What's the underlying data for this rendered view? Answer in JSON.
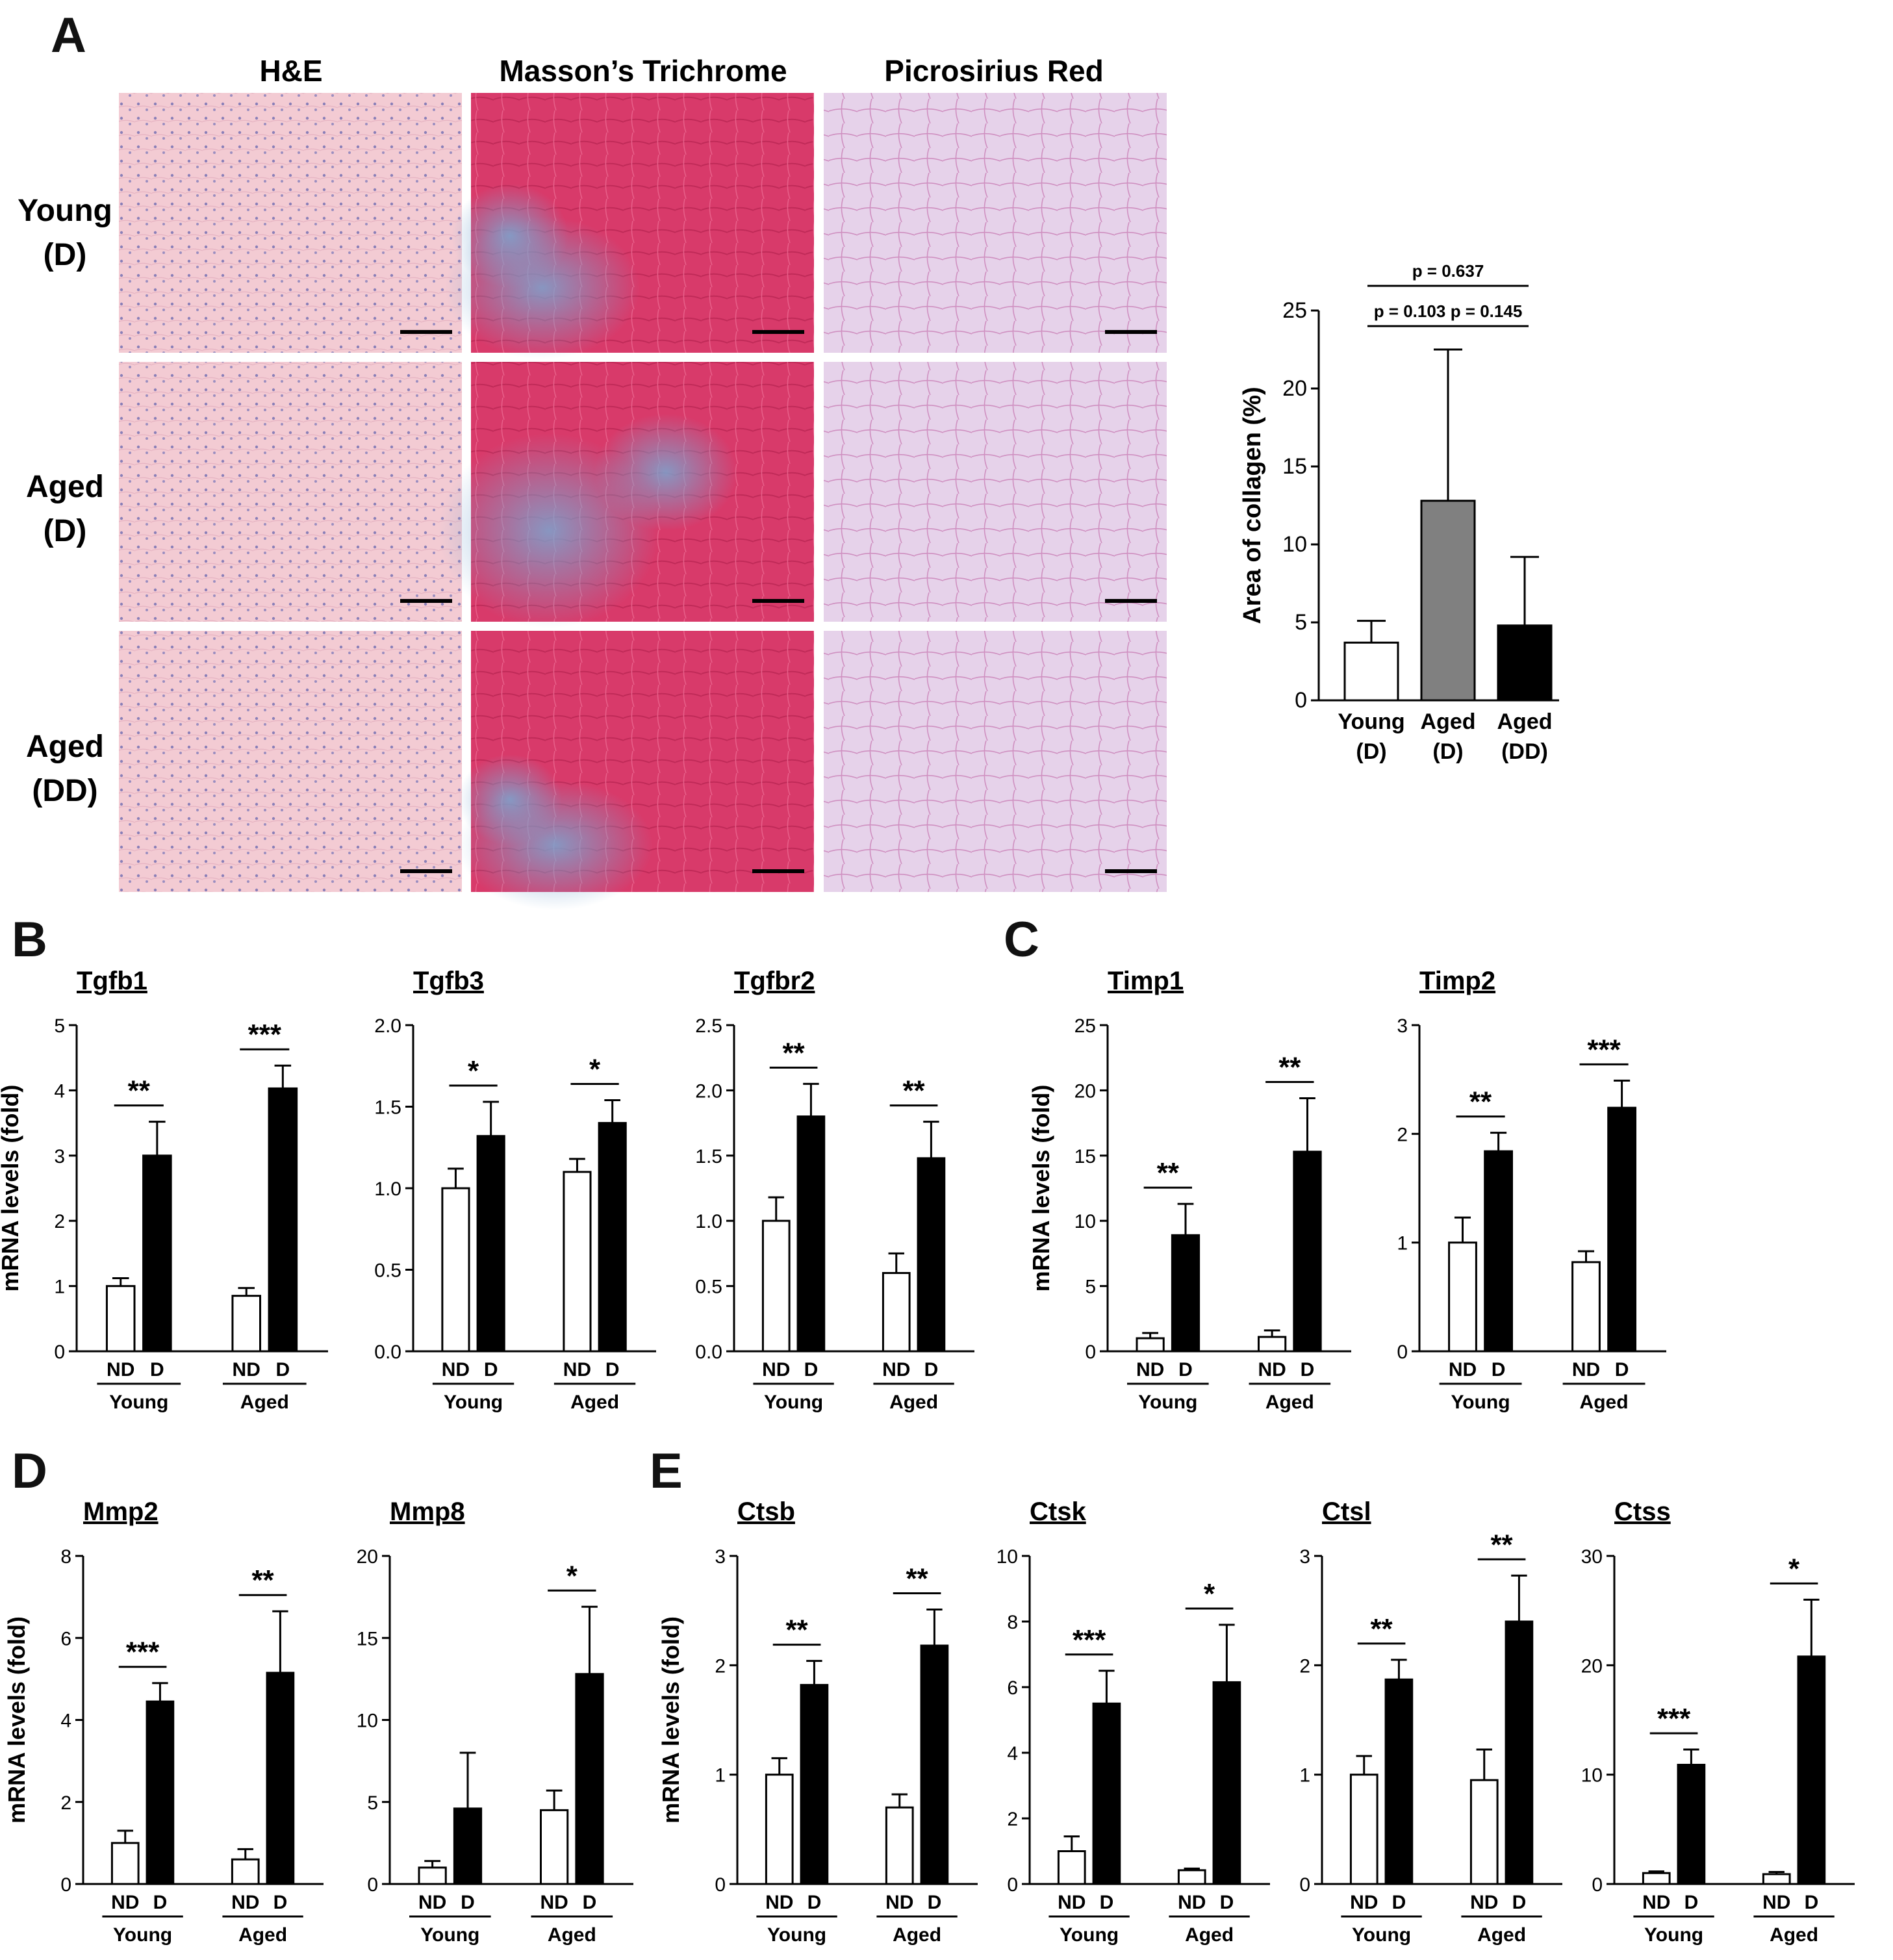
{
  "panels": {
    "A": "A",
    "B": "B",
    "C": "C",
    "D": "D",
    "E": "E"
  },
  "stain_headers": [
    "H&E",
    "Masson’s Trichrome",
    "Picrosirius Red"
  ],
  "row_labels": [
    [
      "Young",
      "(D)"
    ],
    [
      "Aged",
      "(D)"
    ],
    [
      "Aged",
      "(DD)"
    ]
  ],
  "group_names": [
    "Young",
    "Aged"
  ],
  "bar_labels": [
    "ND",
    "D"
  ],
  "colors": {
    "he_bg": "#f3cbd3",
    "he_cell": "#8a7fb8",
    "mt_bg": "#d83a6a",
    "mt_blue": "#7aa6d0",
    "psr_bg": "#e6d2ea",
    "psr_line": "#c86aa8",
    "gray_bar": "#808080",
    "black": "#000000",
    "white": "#ffffff"
  },
  "chart_data": [
    {
      "id": "collagen",
      "type": "bar",
      "categories": [
        [
          "Young",
          "(D)"
        ],
        [
          "Aged",
          "(D)"
        ],
        [
          "Aged",
          "(DD)"
        ]
      ],
      "values": [
        3.7,
        12.8,
        4.8
      ],
      "errors": [
        1.4,
        9.7,
        4.4
      ],
      "fills": [
        "#ffffff",
        "#808080",
        "#000000"
      ],
      "ylabel": "Area of collagen (%)",
      "ylim": [
        0,
        25
      ],
      "yticks": [
        "0",
        "5",
        "10",
        "15",
        "20",
        "25"
      ],
      "pvalues": [
        "p = 0.637",
        "p = 0.103",
        "p = 0.145"
      ]
    },
    {
      "id": "tgfb1",
      "type": "bar",
      "title": "Tgfb1",
      "ylabel": "mRNA levels (fold)",
      "ylim": [
        0,
        5
      ],
      "yticks": [
        "0",
        "1",
        "2",
        "3",
        "4",
        "5"
      ],
      "series": [
        {
          "name": "ND",
          "values": [
            1.0,
            0.85
          ],
          "errors": [
            0.12,
            0.12
          ]
        },
        {
          "name": "D",
          "values": [
            3.0,
            4.03
          ],
          "errors": [
            0.52,
            0.35
          ]
        }
      ],
      "sig": [
        "**",
        "***"
      ]
    },
    {
      "id": "tgfb3",
      "type": "bar",
      "title": "Tgfb3",
      "ylabel": "",
      "ylim": [
        0,
        2.0
      ],
      "yticks": [
        "0.0",
        "0.5",
        "1.0",
        "1.5",
        "2.0"
      ],
      "series": [
        {
          "name": "ND",
          "values": [
            1.0,
            1.1
          ],
          "errors": [
            0.12,
            0.08
          ]
        },
        {
          "name": "D",
          "values": [
            1.32,
            1.4
          ],
          "errors": [
            0.21,
            0.14
          ]
        }
      ],
      "sig": [
        "*",
        "*"
      ]
    },
    {
      "id": "tgfbr2",
      "type": "bar",
      "title": "Tgfbr2",
      "ylabel": "",
      "ylim": [
        0,
        2.5
      ],
      "yticks": [
        "0.0",
        "0.5",
        "1.0",
        "1.5",
        "2.0",
        "2.5"
      ],
      "series": [
        {
          "name": "ND",
          "values": [
            1.0,
            0.6
          ],
          "errors": [
            0.18,
            0.15
          ]
        },
        {
          "name": "D",
          "values": [
            1.8,
            1.48
          ],
          "errors": [
            0.25,
            0.28
          ]
        }
      ],
      "sig": [
        "**",
        "**"
      ]
    },
    {
      "id": "timp1",
      "type": "bar",
      "title": "Timp1",
      "ylabel": "mRNA levels (fold)",
      "ylim": [
        0,
        25
      ],
      "yticks": [
        "0",
        "5",
        "10",
        "15",
        "20",
        "25"
      ],
      "series": [
        {
          "name": "ND",
          "values": [
            1.0,
            1.1
          ],
          "errors": [
            0.4,
            0.5
          ]
        },
        {
          "name": "D",
          "values": [
            8.9,
            15.3
          ],
          "errors": [
            2.4,
            4.1
          ]
        }
      ],
      "sig": [
        "**",
        "**"
      ]
    },
    {
      "id": "timp2",
      "type": "bar",
      "title": "Timp2",
      "ylabel": "",
      "ylim": [
        0,
        3
      ],
      "yticks": [
        "0",
        "1",
        "2",
        "3"
      ],
      "series": [
        {
          "name": "ND",
          "values": [
            1.0,
            0.82
          ],
          "errors": [
            0.23,
            0.1
          ]
        },
        {
          "name": "D",
          "values": [
            1.84,
            2.24
          ],
          "errors": [
            0.17,
            0.25
          ]
        }
      ],
      "sig": [
        "**",
        "***"
      ]
    },
    {
      "id": "mmp2",
      "type": "bar",
      "title": "Mmp2",
      "ylabel": "mRNA levels (fold)",
      "ylim": [
        0,
        8
      ],
      "yticks": [
        "0",
        "2",
        "4",
        "6",
        "8"
      ],
      "series": [
        {
          "name": "ND",
          "values": [
            1.0,
            0.6
          ],
          "errors": [
            0.3,
            0.25
          ]
        },
        {
          "name": "D",
          "values": [
            4.45,
            5.15
          ],
          "errors": [
            0.45,
            1.5
          ]
        }
      ],
      "sig": [
        "***",
        "**"
      ]
    },
    {
      "id": "mmp8",
      "type": "bar",
      "title": "Mmp8",
      "ylabel": "",
      "ylim": [
        0,
        20
      ],
      "yticks": [
        "0",
        "5",
        "10",
        "15",
        "20"
      ],
      "series": [
        {
          "name": "ND",
          "values": [
            1.0,
            4.5
          ],
          "errors": [
            0.4,
            1.2
          ]
        },
        {
          "name": "D",
          "values": [
            4.6,
            12.8
          ],
          "errors": [
            3.4,
            4.1
          ]
        }
      ],
      "sig": [
        null,
        "*"
      ]
    },
    {
      "id": "ctsb",
      "type": "bar",
      "title": "Ctsb",
      "ylabel": "mRNA levels (fold)",
      "ylim": [
        0,
        3
      ],
      "yticks": [
        "0",
        "1",
        "2",
        "3"
      ],
      "series": [
        {
          "name": "ND",
          "values": [
            1.0,
            0.7
          ],
          "errors": [
            0.15,
            0.12
          ]
        },
        {
          "name": "D",
          "values": [
            1.82,
            2.18
          ],
          "errors": [
            0.22,
            0.33
          ]
        }
      ],
      "sig": [
        "**",
        "**"
      ]
    },
    {
      "id": "ctsk",
      "type": "bar",
      "title": "Ctsk",
      "ylabel": "",
      "ylim": [
        0,
        10
      ],
      "yticks": [
        "0",
        "2",
        "4",
        "6",
        "8",
        "10"
      ],
      "series": [
        {
          "name": "ND",
          "values": [
            1.0,
            0.42
          ],
          "errors": [
            0.45,
            0.05
          ]
        },
        {
          "name": "D",
          "values": [
            5.5,
            6.15
          ],
          "errors": [
            1.0,
            1.75
          ]
        }
      ],
      "sig": [
        "***",
        "*"
      ]
    },
    {
      "id": "ctsl",
      "type": "bar",
      "title": "Ctsl",
      "ylabel": "",
      "ylim": [
        0,
        3
      ],
      "yticks": [
        "0",
        "1",
        "2",
        "3"
      ],
      "series": [
        {
          "name": "ND",
          "values": [
            1.0,
            0.95
          ],
          "errors": [
            0.17,
            0.28
          ]
        },
        {
          "name": "D",
          "values": [
            1.87,
            2.4
          ],
          "errors": [
            0.18,
            0.42
          ]
        }
      ],
      "sig": [
        "**",
        "**"
      ]
    },
    {
      "id": "ctss",
      "type": "bar",
      "title": "Ctss",
      "ylabel": "",
      "ylim": [
        0,
        30
      ],
      "yticks": [
        "0",
        "10",
        "20",
        "30"
      ],
      "series": [
        {
          "name": "ND",
          "values": [
            1.0,
            0.9
          ],
          "errors": [
            0.15,
            0.2
          ]
        },
        {
          "name": "D",
          "values": [
            10.9,
            20.8
          ],
          "errors": [
            1.4,
            5.2
          ]
        }
      ],
      "sig": [
        "***",
        "*"
      ]
    }
  ]
}
